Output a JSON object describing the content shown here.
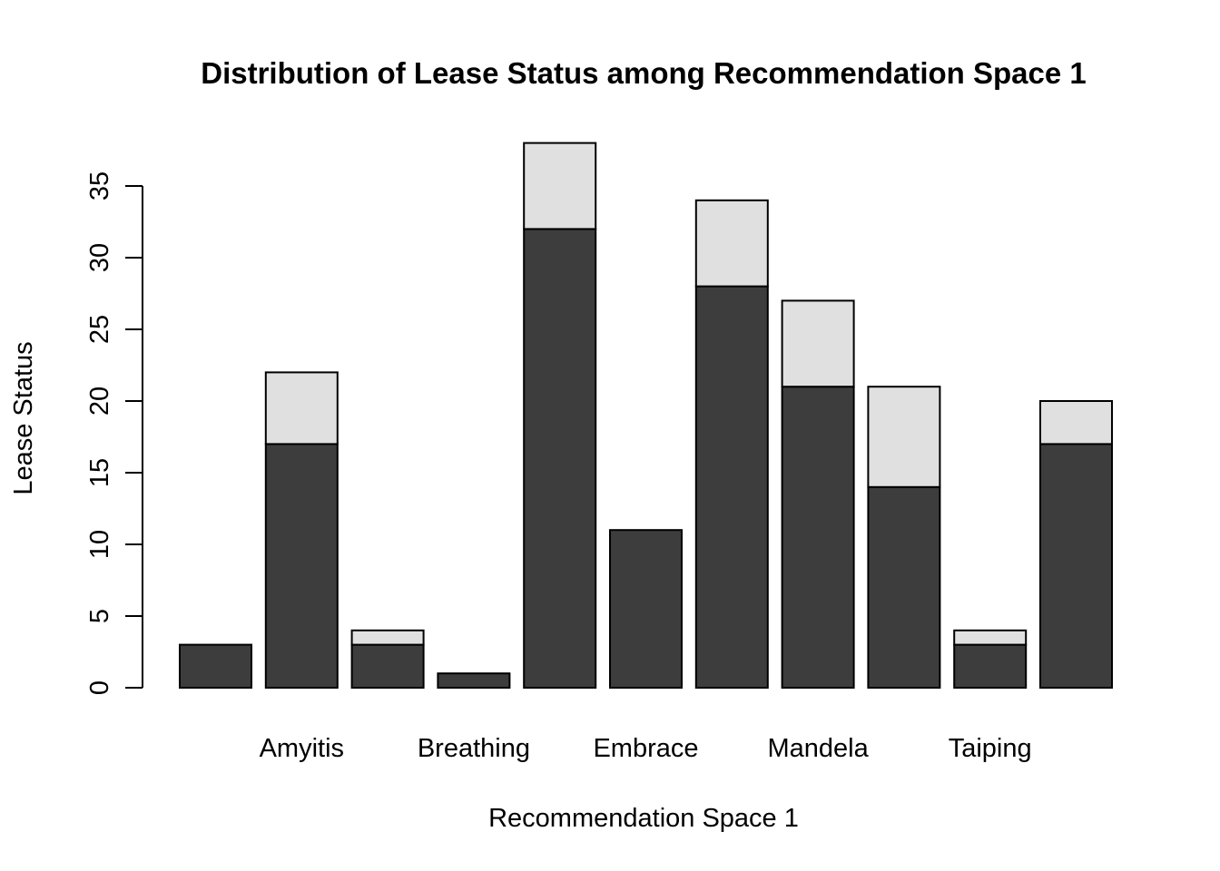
{
  "chart_data": {
    "type": "bar",
    "stacked": true,
    "title": "Distribution of Lease Status among Recommendation Space 1",
    "xlabel": "Recommendation Space 1",
    "ylabel": "Lease Status",
    "ylim": [
      0,
      38
    ],
    "yticks": [
      0,
      5,
      10,
      15,
      20,
      25,
      30,
      35
    ],
    "x_tick_labels": [
      {
        "label": "Amyitis",
        "bar_index": 1
      },
      {
        "label": "Breathing",
        "bar_index": 3
      },
      {
        "label": "Embrace",
        "bar_index": 5
      },
      {
        "label": "Mandela",
        "bar_index": 7
      },
      {
        "label": "Taiping",
        "bar_index": 9
      }
    ],
    "bar_count": 11,
    "series": [
      {
        "color": "#3d3d3d",
        "values": [
          3,
          17,
          3,
          1,
          32,
          11,
          28,
          21,
          14,
          3,
          17
        ]
      },
      {
        "color": "#e0e0e0",
        "values": [
          0,
          5,
          1,
          0,
          6,
          0,
          6,
          6,
          7,
          1,
          3
        ]
      }
    ],
    "grid": false,
    "legend": "none"
  }
}
